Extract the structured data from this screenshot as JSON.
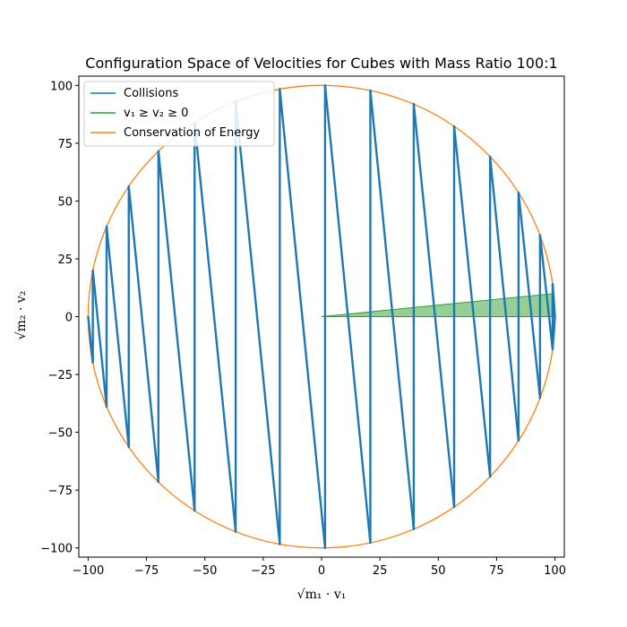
{
  "chart_data": {
    "type": "line",
    "title": "Configuration Space of Velocities for Cubes with Mass Ratio 100:1",
    "xlabel": "√m₁ · v₁",
    "ylabel": "√m₂ · v₂",
    "xlim": [
      -104,
      104
    ],
    "ylim": [
      -104,
      104
    ],
    "xticks": [
      -100,
      -75,
      -50,
      -25,
      0,
      25,
      50,
      75,
      100
    ],
    "yticks": [
      -100,
      -75,
      -50,
      -25,
      0,
      25,
      50,
      75,
      100
    ],
    "tick_labels_x": [
      "−100",
      "−75",
      "−50",
      "−25",
      "0",
      "25",
      "50",
      "75",
      "100"
    ],
    "tick_labels_y": [
      "−100",
      "−75",
      "−50",
      "−25",
      "0",
      "25",
      "50",
      "75",
      "100"
    ],
    "grid": false,
    "legend_position": "top-left",
    "legend": [
      "Collisions",
      "v₁ ≥ v₂ ≥ 0",
      "Conservation of Energy"
    ],
    "series": [
      {
        "name": "Collisions",
        "color": "#1f77b4",
        "x": [
          -100,
          -98.0,
          -98.0,
          -92.1,
          -92.1,
          -82.6,
          -82.6,
          -69.9,
          -69.9,
          -54.4,
          -54.4,
          -36.8,
          -36.8,
          -17.9,
          -17.9,
          1.5,
          1.5,
          20.9,
          20.9,
          39.5,
          39.5,
          56.8,
          56.8,
          72.2,
          72.2,
          84.4,
          84.4,
          93.6,
          93.6,
          99.0,
          99.0,
          100,
          99.0
        ],
        "y": [
          0,
          -19.9,
          19.9,
          -39.0,
          39.0,
          -56.4,
          56.4,
          -71.5,
          71.5,
          -83.9,
          83.9,
          -93.0,
          93.0,
          -98.4,
          98.4,
          -100.0,
          100.0,
          -97.8,
          97.8,
          -91.9,
          91.9,
          -82.3,
          82.3,
          -69.2,
          69.2,
          -53.6,
          53.6,
          -35.2,
          35.2,
          -14.1,
          14.1,
          0,
          -14.1
        ]
      },
      {
        "name": "v₁ ≥ v₂ ≥ 0",
        "color": "#2ca02c",
        "region": [
          [
            0,
            0
          ],
          [
            99.5,
            9.95
          ],
          [
            99.5,
            0
          ]
        ]
      },
      {
        "name": "Conservation of Energy",
        "color": "#ff7f0e",
        "circle": {
          "cx": 0,
          "cy": 0,
          "r": 100
        }
      }
    ]
  }
}
